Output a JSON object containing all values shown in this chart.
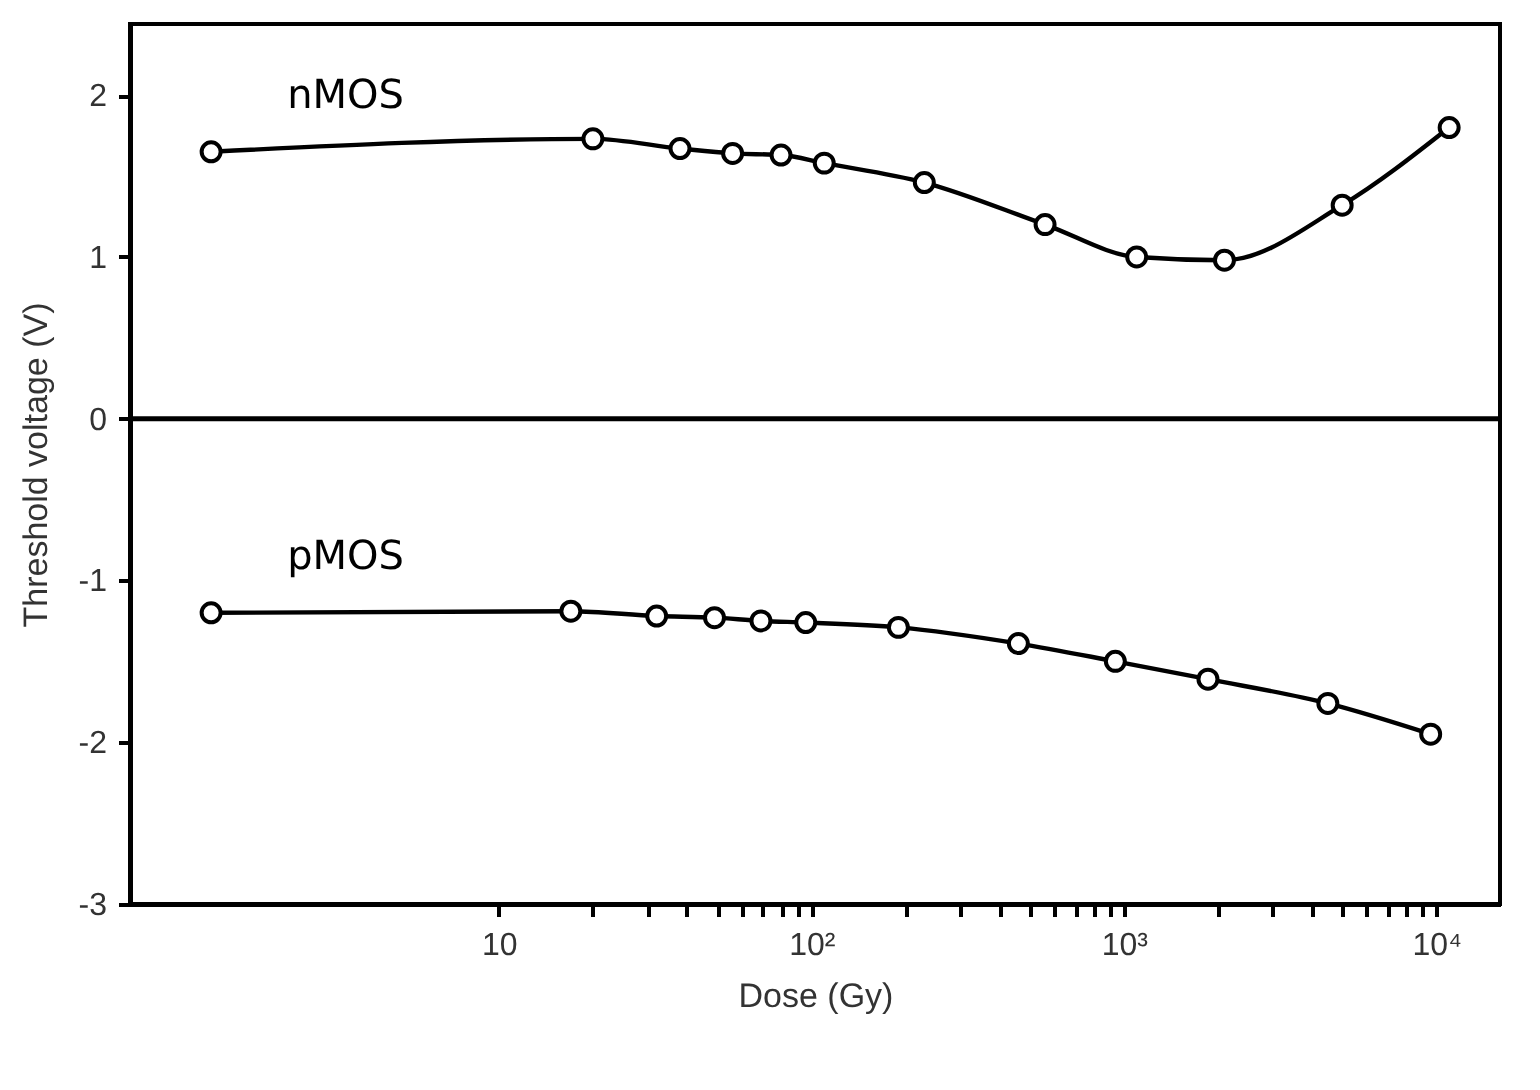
{
  "chart_data": {
    "type": "line",
    "xlabel": "Dose (Gy)",
    "ylabel": "Threshold voltage (V)",
    "log": "x",
    "xlim": [
      0.66,
      16000
    ],
    "ylim": [
      -3,
      2.44
    ],
    "xticks": [
      10,
      {
        "value": 20,
        "label": null
      },
      {
        "value": 30,
        "label": null
      },
      {
        "value": 40,
        "label": null
      },
      {
        "value": 50,
        "label": null
      },
      {
        "value": 60,
        "label": null
      },
      {
        "value": 70,
        "label": null
      },
      {
        "value": 80,
        "label": null
      },
      {
        "value": 90,
        "label": null
      },
      {
        "value": 100,
        "label": "10²"
      },
      {
        "value": 200,
        "label": null
      },
      {
        "value": 300,
        "label": null
      },
      {
        "value": 400,
        "label": null
      },
      {
        "value": 500,
        "label": null
      },
      {
        "value": 600,
        "label": null
      },
      {
        "value": 700,
        "label": null
      },
      {
        "value": 800,
        "label": null
      },
      {
        "value": 900,
        "label": null
      },
      {
        "value": 1000,
        "label": "10³"
      },
      {
        "value": 2000,
        "label": null
      },
      {
        "value": 3000,
        "label": null
      },
      {
        "value": 4000,
        "label": null
      },
      {
        "value": 5000,
        "label": null
      },
      {
        "value": 6000,
        "label": null
      },
      {
        "value": 7000,
        "label": null
      },
      {
        "value": 8000,
        "label": null
      },
      {
        "value": 9000,
        "label": null
      },
      {
        "value": 10000,
        "label": "10⁴"
      }
    ],
    "yticks": [
      -3,
      -2,
      -1,
      0,
      1,
      2
    ],
    "grid": false,
    "marker": "circle",
    "line_style": "solid",
    "ref_lines": [
      {
        "axis": "y",
        "value": 0,
        "color": "#000000",
        "line_style": "solid"
      }
    ],
    "series": [
      {
        "name": "nMOS",
        "color": "#000000",
        "x": [
          1.2,
          20,
          38,
          56,
          80,
          110,
          230,
          560,
          1100,
          2100,
          5000,
          11000
        ],
        "values": [
          1.65,
          1.73,
          1.67,
          1.64,
          1.63,
          1.58,
          1.46,
          1.2,
          1.0,
          0.98,
          1.32,
          1.8
        ]
      },
      {
        "name": "pMOS",
        "color": "#000000",
        "x": [
          1.2,
          17,
          32,
          49,
          69,
          96,
          190,
          460,
          940,
          1860,
          4500,
          9600
        ],
        "values": [
          -1.2,
          -1.19,
          -1.22,
          -1.23,
          -1.25,
          -1.26,
          -1.29,
          -1.39,
          -1.5,
          -1.61,
          -1.76,
          -1.95
        ]
      }
    ]
  }
}
